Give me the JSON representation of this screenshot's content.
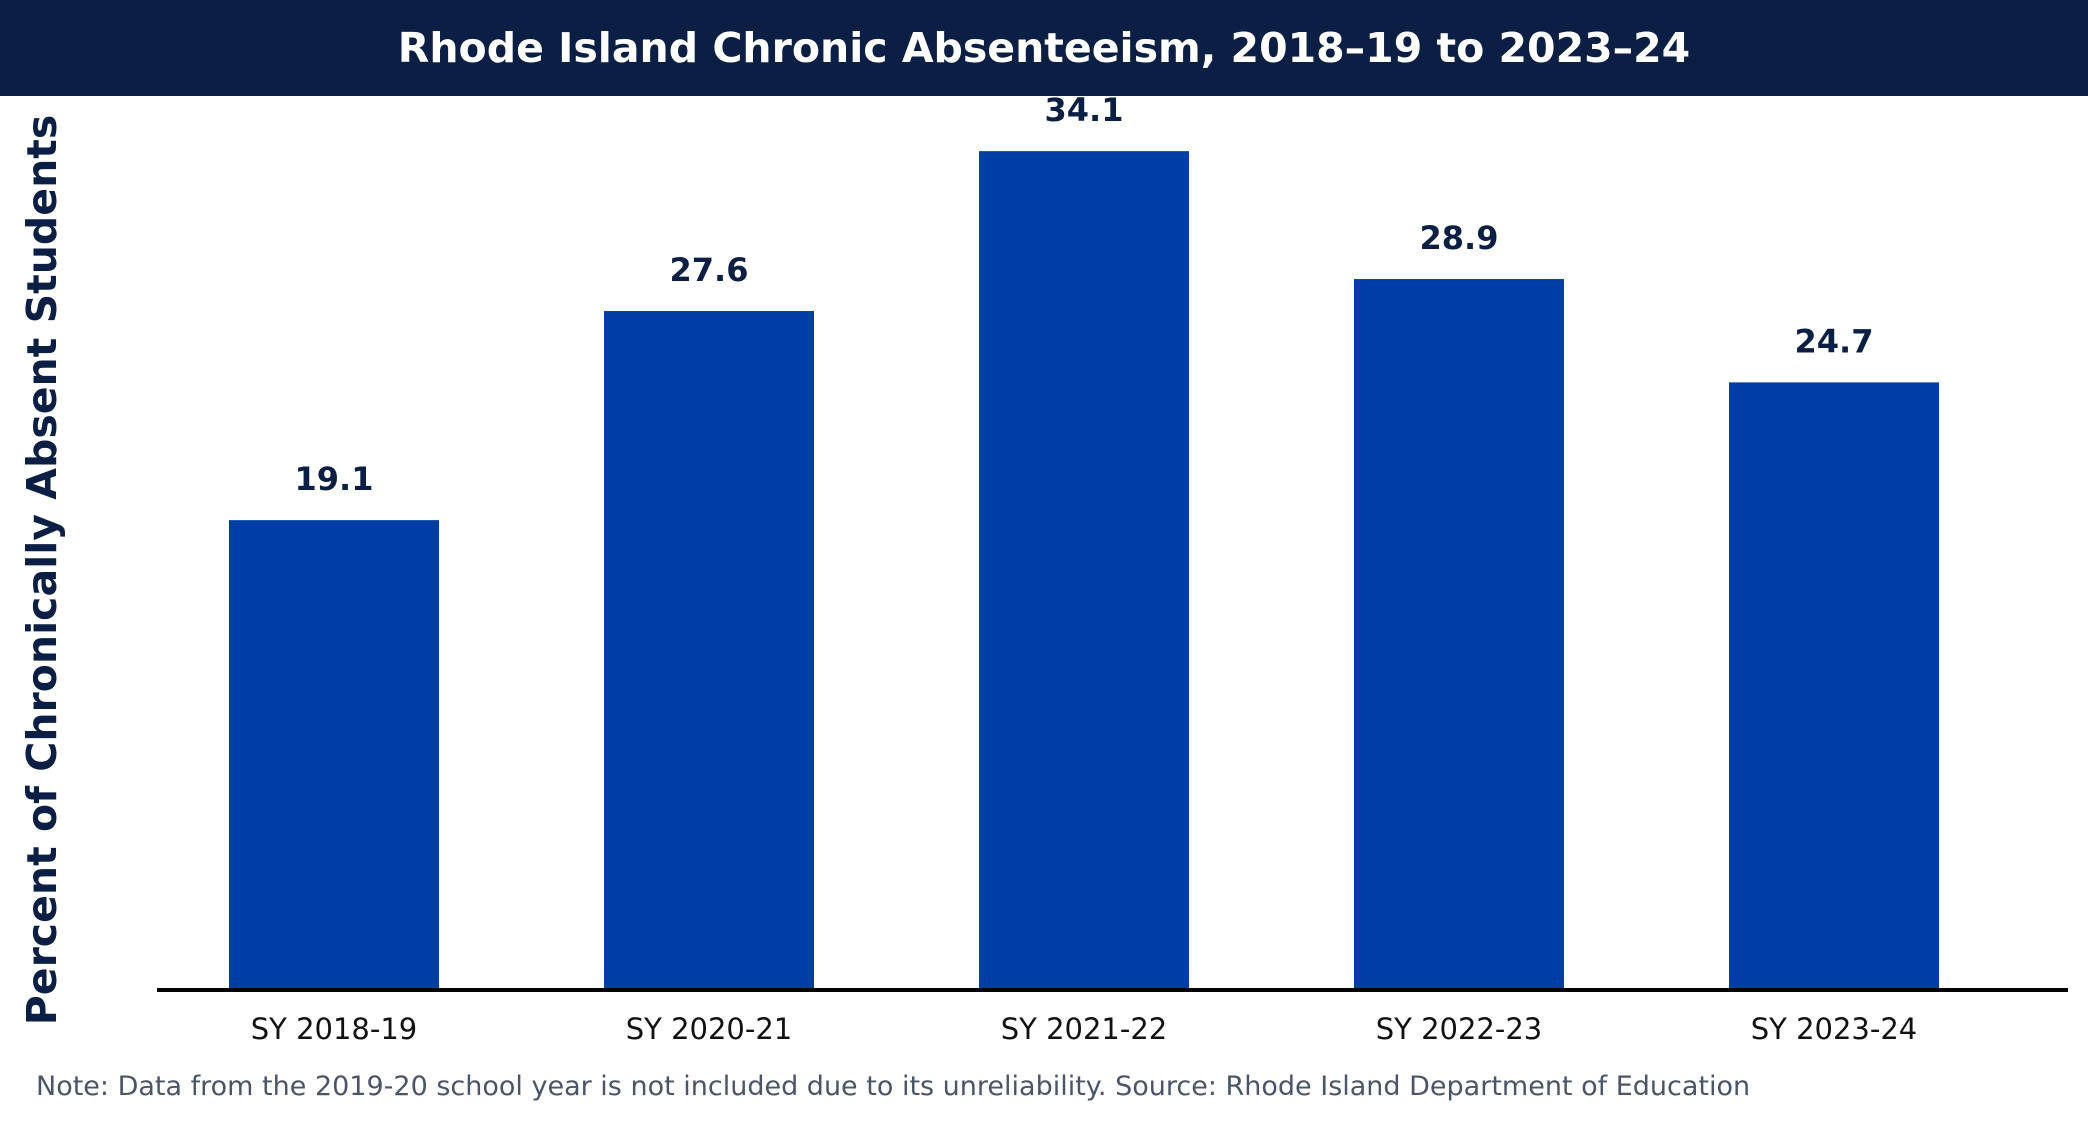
{
  "chart_data": {
    "type": "bar",
    "title": "Rhode Island Chronic Absenteeism, 2018–19 to 2023–24",
    "ylabel": "Percent of Chronically Absent Students",
    "xlabel": "",
    "categories": [
      "SY 2018-19",
      "SY 2020-21",
      "SY 2021-22",
      "SY 2022-23",
      "SY 2023-24"
    ],
    "values": [
      19.1,
      27.6,
      34.1,
      28.9,
      24.7
    ],
    "value_labels": [
      "19.1",
      "27.6",
      "34.1",
      "28.9",
      "24.7"
    ],
    "ylim": [
      0,
      36
    ],
    "grid": false,
    "legend": "none",
    "note": "Note: Data from the 2019-20 school year is not included due to its unreliability. Source: Rhode Island Department of Education"
  },
  "colors": {
    "bar": "#003da5",
    "title_bg": "#0b1f45",
    "title_text": "#ffffff",
    "label": "#0b1f45",
    "axis": "#000000"
  }
}
